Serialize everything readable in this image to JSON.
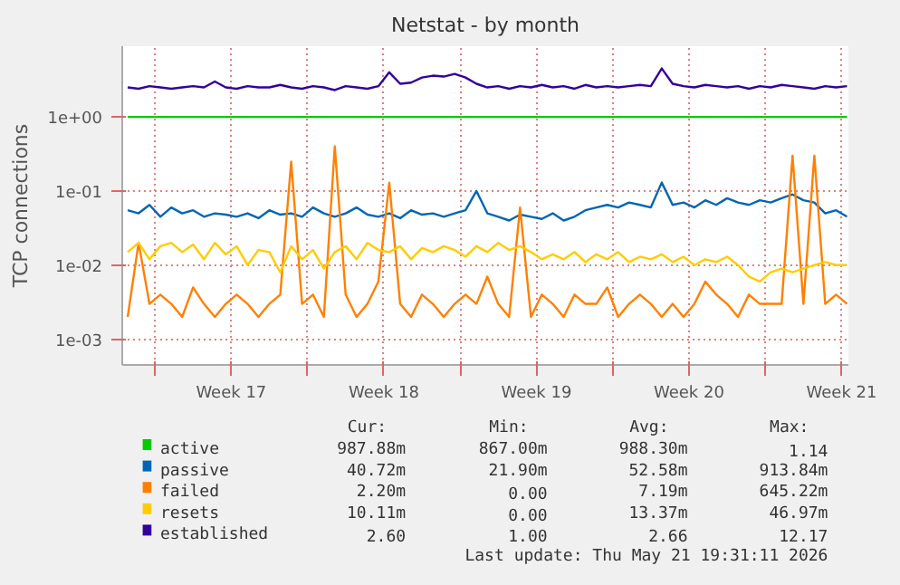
{
  "chart_data": {
    "type": "line",
    "title": "Netstat - by month",
    "ylabel": "TCP connections",
    "log": "y",
    "grid": true,
    "legend": "bottom",
    "x": [
      "2026-04-18T18:00",
      "2026-04-19T06:00",
      "2026-04-19T18:00",
      "2026-04-20T06:00",
      "2026-04-20T18:00",
      "2026-04-21T06:00",
      "2026-04-21T18:00",
      "2026-04-22T06:00",
      "2026-04-22T18:00",
      "2026-04-23T06:00",
      "2026-04-23T18:00",
      "2026-04-24T06:00",
      "2026-04-24T18:00",
      "2026-04-25T06:00",
      "2026-04-25T18:00",
      "2026-04-26T06:00",
      "2026-04-26T18:00",
      "2026-04-27T06:00",
      "2026-04-27T18:00",
      "2026-04-28T06:00",
      "2026-04-28T18:00",
      "2026-04-29T06:00",
      "2026-04-29T18:00",
      "2026-04-30T06:00",
      "2026-04-30T18:00",
      "2026-05-01T06:00",
      "2026-05-01T18:00",
      "2026-05-02T06:00",
      "2026-05-02T18:00",
      "2026-05-03T06:00",
      "2026-05-03T18:00",
      "2026-05-04T06:00",
      "2026-05-04T18:00",
      "2026-05-05T06:00",
      "2026-05-05T18:00",
      "2026-05-06T06:00",
      "2026-05-06T18:00",
      "2026-05-07T06:00",
      "2026-05-07T18:00",
      "2026-05-08T06:00",
      "2026-05-08T18:00",
      "2026-05-09T06:00",
      "2026-05-09T18:00",
      "2026-05-10T06:00",
      "2026-05-10T18:00",
      "2026-05-11T06:00",
      "2026-05-11T18:00",
      "2026-05-12T06:00",
      "2026-05-12T18:00",
      "2026-05-13T06:00",
      "2026-05-13T18:00",
      "2026-05-14T06:00",
      "2026-05-14T18:00",
      "2026-05-15T06:00",
      "2026-05-15T18:00",
      "2026-05-16T06:00",
      "2026-05-16T18:00",
      "2026-05-17T06:00",
      "2026-05-17T18:00",
      "2026-05-18T06:00",
      "2026-05-18T18:00",
      "2026-05-19T06:00",
      "2026-05-19T18:00",
      "2026-05-20T06:00",
      "2026-05-20T18:00",
      "2026-05-21T06:00",
      "2026-05-21T18:00"
    ],
    "xlim": [
      "2026-04-18T12:00",
      "2026-05-21T19:30"
    ],
    "xticks": [
      {
        "value": "2026-04-20",
        "label": null
      },
      {
        "value": "2026-04-23T12:00",
        "label": "Week 17"
      },
      {
        "value": "2026-04-27",
        "label": null
      },
      {
        "value": "2026-04-30T12:00",
        "label": "Week 18"
      },
      {
        "value": "2026-05-04",
        "label": null
      },
      {
        "value": "2026-05-07T12:00",
        "label": "Week 19"
      },
      {
        "value": "2026-05-11",
        "label": null
      },
      {
        "value": "2026-05-14T12:00",
        "label": "Week 20"
      },
      {
        "value": "2026-05-18",
        "label": null
      },
      {
        "value": "2026-05-21T12:00",
        "label": "Week 21"
      }
    ],
    "ylim": [
      0.00045,
      9
    ],
    "yticks": [
      {
        "value": 0.001,
        "label": "1e-03"
      },
      {
        "value": 0.01,
        "label": "1e-02"
      },
      {
        "value": 0.1,
        "label": "1e-01"
      },
      {
        "value": 1,
        "label": "1e+00"
      }
    ],
    "series": [
      {
        "name": "active",
        "color": "#00cc00",
        "values": [
          1,
          1,
          1,
          1,
          1,
          1,
          1,
          1,
          1,
          1,
          1,
          1,
          1,
          1,
          1,
          1,
          1,
          1,
          1,
          1,
          1,
          1,
          1,
          1,
          1,
          1,
          1,
          1,
          1,
          1,
          1,
          1,
          1,
          1,
          1,
          1,
          1,
          1,
          1,
          1,
          1,
          1,
          1,
          1,
          1,
          1,
          1,
          1,
          1,
          1,
          1,
          1,
          1,
          1,
          1,
          1,
          1,
          1,
          1,
          1,
          1,
          1,
          1,
          1,
          1,
          1,
          1
        ]
      },
      {
        "name": "passive",
        "color": "#0066b3",
        "values": [
          0.055,
          0.05,
          0.065,
          0.045,
          0.06,
          0.05,
          0.055,
          0.045,
          0.05,
          0.048,
          0.045,
          0.05,
          0.043,
          0.055,
          0.048,
          0.05,
          0.045,
          0.06,
          0.05,
          0.045,
          0.05,
          0.06,
          0.048,
          0.045,
          0.05,
          0.043,
          0.055,
          0.048,
          0.05,
          0.045,
          0.05,
          0.055,
          0.1,
          0.05,
          0.045,
          0.04,
          0.048,
          0.045,
          0.042,
          0.05,
          0.04,
          0.045,
          0.055,
          0.06,
          0.065,
          0.06,
          0.07,
          0.065,
          0.06,
          0.13,
          0.065,
          0.07,
          0.06,
          0.075,
          0.065,
          0.08,
          0.07,
          0.065,
          0.075,
          0.07,
          0.08,
          0.09,
          0.075,
          0.07,
          0.05,
          0.055,
          0.045
        ]
      },
      {
        "name": "failed",
        "color": "#ff8000",
        "values": [
          0.002,
          0.02,
          0.003,
          0.004,
          0.003,
          0.002,
          0.005,
          0.003,
          0.002,
          0.003,
          0.004,
          0.003,
          0.002,
          0.003,
          0.004,
          0.25,
          0.003,
          0.004,
          0.002,
          0.4,
          0.004,
          0.002,
          0.003,
          0.006,
          0.13,
          0.003,
          0.002,
          0.004,
          0.003,
          0.002,
          0.003,
          0.004,
          0.003,
          0.007,
          0.003,
          0.002,
          0.06,
          0.002,
          0.004,
          0.003,
          0.002,
          0.004,
          0.003,
          0.003,
          0.005,
          0.002,
          0.003,
          0.004,
          0.003,
          0.002,
          0.003,
          0.002,
          0.003,
          0.006,
          0.004,
          0.003,
          0.002,
          0.004,
          0.003,
          0.003,
          0.003,
          0.3,
          0.003,
          0.3,
          0.003,
          0.004,
          0.003
        ]
      },
      {
        "name": "resets",
        "color": "#ffcc00",
        "values": [
          0.015,
          0.02,
          0.012,
          0.018,
          0.02,
          0.015,
          0.019,
          0.012,
          0.02,
          0.014,
          0.018,
          0.01,
          0.016,
          0.015,
          0.008,
          0.018,
          0.012,
          0.016,
          0.009,
          0.015,
          0.018,
          0.012,
          0.02,
          0.016,
          0.015,
          0.018,
          0.012,
          0.017,
          0.015,
          0.018,
          0.016,
          0.013,
          0.018,
          0.015,
          0.02,
          0.016,
          0.018,
          0.015,
          0.012,
          0.014,
          0.012,
          0.015,
          0.011,
          0.014,
          0.012,
          0.015,
          0.011,
          0.013,
          0.012,
          0.014,
          0.011,
          0.013,
          0.01,
          0.012,
          0.011,
          0.013,
          0.01,
          0.007,
          0.006,
          0.008,
          0.009,
          0.008,
          0.009,
          0.01,
          0.011,
          0.01,
          0.01
        ]
      },
      {
        "name": "established",
        "color": "#330099",
        "values": [
          2.5,
          2.4,
          2.6,
          2.5,
          2.4,
          2.5,
          2.6,
          2.5,
          3.0,
          2.5,
          2.4,
          2.6,
          2.5,
          2.5,
          2.7,
          2.5,
          2.4,
          2.6,
          2.5,
          2.3,
          2.6,
          2.5,
          2.4,
          2.6,
          4.0,
          2.8,
          2.9,
          3.4,
          3.6,
          3.5,
          3.8,
          3.4,
          2.8,
          2.5,
          2.6,
          2.4,
          2.6,
          2.5,
          2.7,
          2.5,
          2.6,
          2.4,
          2.7,
          2.5,
          2.6,
          2.5,
          2.6,
          2.7,
          2.6,
          4.5,
          2.8,
          2.6,
          2.5,
          2.7,
          2.6,
          2.5,
          2.6,
          2.4,
          2.6,
          2.5,
          2.7,
          2.6,
          2.5,
          2.4,
          2.6,
          2.5,
          2.6
        ]
      }
    ],
    "annotations": [
      "Cur:",
      "Min:",
      "Avg:",
      "Max:",
      "987.88m",
      "867.00m",
      "988.30m",
      "1.14",
      "40.72m",
      "21.90m",
      "52.58m",
      "913.84m",
      "2.20m",
      "0.00",
      "7.19m",
      "645.22m",
      "10.11m",
      "0.00",
      "13.37m",
      "46.97m",
      "2.60",
      "1.00",
      "2.66",
      "12.17",
      "Last update: Thu May 21 19:31:11 2026"
    ]
  }
}
